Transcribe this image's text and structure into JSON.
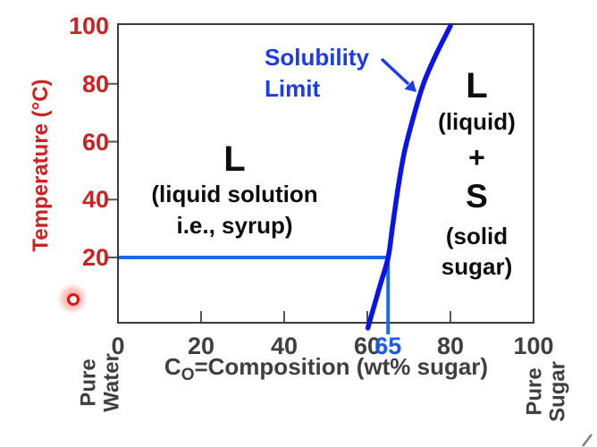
{
  "figure": {
    "y_axis": {
      "title": "Temperature (°C)"
    },
    "x_axis": {
      "title_prefix": "C",
      "title_subscript": "O",
      "title_suffix": "=Composition (wt% sugar)"
    },
    "corner_labels": {
      "bottom_left": [
        "Pure",
        "Water"
      ],
      "bottom_right": [
        "Pure",
        "Sugar"
      ]
    },
    "callout": {
      "line1": "Solubility",
      "line2": "Limit"
    },
    "regions": {
      "left": {
        "symbol": "L",
        "desc1": "(liquid solution",
        "desc2": "i.e., syrup)"
      },
      "right": {
        "symbol_liquid": "L",
        "desc_liquid": "(liquid)",
        "plus": "+",
        "symbol_solid": "S",
        "desc_solid1": "(solid",
        "desc_solid2": "sugar)"
      }
    },
    "colors": {
      "axis_red": "#cc2222",
      "axis_gray": "#3f3f3f",
      "axis_line": "#3a3a3a",
      "tick_mark": "#555555",
      "blue_curve": "#0a14e6",
      "blue_tie": "#1a6ae8",
      "blue_text": "#1c3ce6",
      "highlight_65": "#1a5ae8"
    }
  },
  "chart_data": {
    "type": "line",
    "title": "",
    "xlabel": "CO=Composition (wt% sugar)",
    "ylabel": "Temperature (°C)",
    "xlim": [
      0,
      100
    ],
    "ylim": [
      0,
      100
    ],
    "grid": false,
    "x_tick_labels": [
      0,
      20,
      40,
      60,
      80,
      100
    ],
    "x_highlight_tick": 65,
    "y_tick_labels": [
      100,
      80,
      60,
      40,
      20
    ],
    "x_tick_marks": [
      20,
      40,
      60,
      80
    ],
    "y_tick_marks": [
      20,
      40,
      60,
      80
    ],
    "series": [
      {
        "name": "Solubility Limit",
        "points_composition_temperature": [
          [
            61,
            0
          ],
          [
            63,
            10
          ],
          [
            65,
            20
          ],
          [
            66,
            30
          ],
          [
            67.5,
            45
          ],
          [
            69,
            57
          ],
          [
            71,
            68
          ],
          [
            73.5,
            80
          ],
          [
            76.5,
            90
          ],
          [
            80,
            100
          ]
        ]
      }
    ],
    "annotations": {
      "tie_line": {
        "temperature": 20,
        "composition": 65
      },
      "callout": {
        "text": "Solubility Limit"
      },
      "region_labels": [
        "L (liquid solution i.e., syrup)",
        "L (liquid) + S (solid sugar)"
      ]
    }
  }
}
